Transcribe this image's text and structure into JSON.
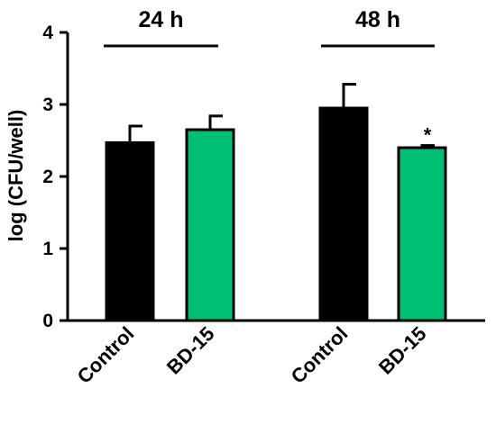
{
  "chart_data": {
    "type": "bar",
    "ylabel": "log (CFU/well)",
    "ylim": [
      0,
      4
    ],
    "yticks": [
      "0",
      "1",
      "2",
      "3",
      "4"
    ],
    "grid": false,
    "groups": [
      {
        "label": "24 h",
        "bars": [
          {
            "category": "Control",
            "value": 2.47,
            "error": 0.23,
            "color": "#000000",
            "annotation": ""
          },
          {
            "category": "BD-15",
            "value": 2.65,
            "error": 0.19,
            "color": "#00BF72",
            "annotation": ""
          }
        ]
      },
      {
        "label": "48 h",
        "bars": [
          {
            "category": "Control",
            "value": 2.95,
            "error": 0.33,
            "color": "#000000",
            "annotation": ""
          },
          {
            "category": "BD-15",
            "value": 2.4,
            "error": 0.03,
            "color": "#00BF72",
            "annotation": "*"
          }
        ]
      }
    ]
  }
}
